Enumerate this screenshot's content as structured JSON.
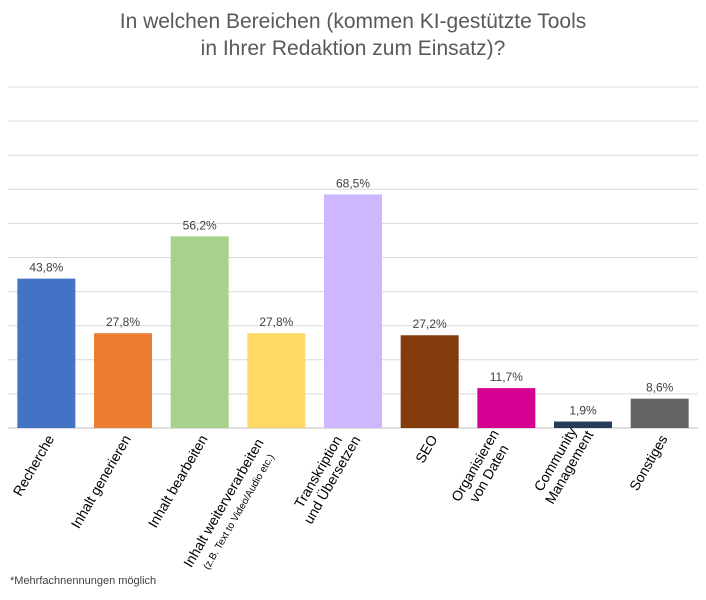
{
  "chart_data": {
    "type": "bar",
    "title_lines": [
      "In welchen Bereichen (kommen KI-gestützte Tools",
      "in Ihrer Redaktion zum Einsatz)?"
    ],
    "categories": [
      {
        "lines": [
          "Recherche"
        ]
      },
      {
        "lines": [
          "Inhalt generieren"
        ]
      },
      {
        "lines": [
          "Inhalt bearbeiten"
        ]
      },
      {
        "lines": [
          "Inhalt weiterverarbeiten",
          "(z.B. Text to Video/Audio etc.)"
        ]
      },
      {
        "lines": [
          "Transkription",
          "und Übersetzen"
        ]
      },
      {
        "lines": [
          "SEO"
        ]
      },
      {
        "lines": [
          "Organisieren",
          "von Daten"
        ]
      },
      {
        "lines": [
          "Community",
          "Management"
        ]
      },
      {
        "lines": [
          "Sonstiges"
        ]
      }
    ],
    "values": [
      43.8,
      27.8,
      56.2,
      27.8,
      68.5,
      27.2,
      11.7,
      1.9,
      8.6
    ],
    "value_labels": [
      "43,8%",
      "27,8%",
      "56,2%",
      "27,8%",
      "68,5%",
      "27,2%",
      "11,7%",
      "1,9%",
      "8,6%"
    ],
    "colors": [
      "#4472C4",
      "#ED7D31",
      "#A9D18E",
      "#FFD966",
      "#CDB8FF",
      "#843C0C",
      "#D60093",
      "#263B5A",
      "#636363"
    ],
    "ylim": [
      0,
      100
    ],
    "grid": true,
    "legend": "none"
  },
  "footnote": "*Mehrfachnennungen möglich"
}
